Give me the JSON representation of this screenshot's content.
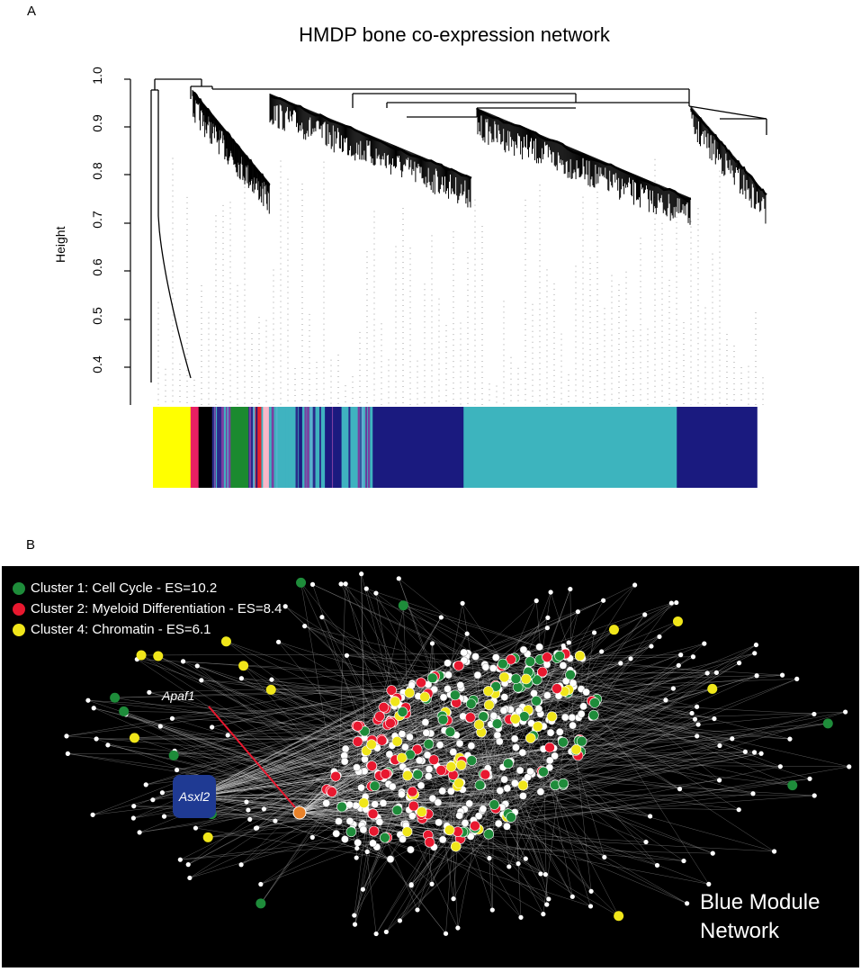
{
  "panel_a": {
    "label": "A",
    "title": "HMDP bone co-expression network",
    "ylabel": "Height",
    "yticks": [
      "0.4",
      "0.5",
      "0.6",
      "0.7",
      "0.8",
      "0.9",
      "1.0"
    ],
    "module_colors": [
      {
        "color": "#ffff00",
        "fraction": 0.061
      },
      {
        "color": "#e81f63",
        "fraction": 0.013
      },
      {
        "color": "#000000",
        "fraction": 0.022
      },
      {
        "color": "#2a2a8a",
        "fraction": 0.015
      },
      {
        "color": "#7b3fa0",
        "fraction": 0.015
      },
      {
        "color": "#1b8a2f",
        "fraction": 0.029
      },
      {
        "color": "#2a2a8a",
        "fraction": 0.009
      },
      {
        "color": "#e8232a",
        "fraction": 0.013
      },
      {
        "color": "#f9b7c8",
        "fraction": 0.017
      },
      {
        "color": "#3fb3c0",
        "fraction": 0.085
      },
      {
        "color": "#1a1a7f",
        "fraction": 0.027
      },
      {
        "color": "#3fb3c0",
        "fraction": 0.047
      },
      {
        "color": "#1a1a7f",
        "fraction": 0.151
      },
      {
        "color": "#3db4be",
        "fraction": 0.346
      },
      {
        "color": "#1a1a7f",
        "fraction": 0.13
      }
    ]
  },
  "panel_b": {
    "label": "B",
    "legend": [
      {
        "text": "Cluster 1: Cell Cycle - ES=10.2",
        "color": "#1e8c3a"
      },
      {
        "text": "Cluster 2: Myeloid Differentiation - ES=8.4",
        "color": "#e8182f"
      },
      {
        "text": "Cluster 4: Chromatin - ES=6.1",
        "color": "#f0e61a"
      }
    ],
    "gene_apaf": "Apaf1",
    "gene_asxl": "Asxl2",
    "module_title_line1": "Blue Module",
    "module_title_line2": "Network",
    "colors": {
      "background": "#000000",
      "node": "#ffffff",
      "hub": "#e8822a",
      "arrow": "#e8182f"
    }
  }
}
